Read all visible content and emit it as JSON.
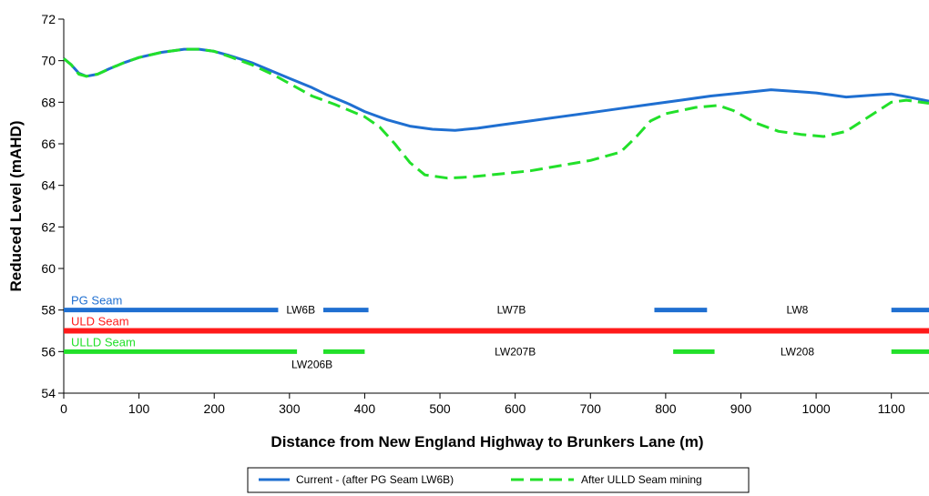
{
  "chart_data": {
    "type": "line",
    "title": "",
    "xlabel": "Distance from New England Highway to Brunkers Lane (m)",
    "ylabel": "Reduced Level (mAHD)",
    "xlim": [
      0,
      1150
    ],
    "ylim": [
      54,
      72
    ],
    "x_ticks": [
      0,
      100,
      200,
      300,
      400,
      500,
      600,
      700,
      800,
      900,
      1000,
      1100
    ],
    "y_ticks": [
      54,
      56,
      58,
      60,
      62,
      64,
      66,
      68,
      70,
      72
    ],
    "grid": false,
    "legend_position": "bottom",
    "series": [
      {
        "name": "Current - (after PG Seam LW6B)",
        "color": "#1f6fd1",
        "style": "solid",
        "points": [
          [
            0,
            70.1
          ],
          [
            10,
            69.8
          ],
          [
            20,
            69.4
          ],
          [
            30,
            69.25
          ],
          [
            45,
            69.35
          ],
          [
            60,
            69.6
          ],
          [
            80,
            69.9
          ],
          [
            100,
            70.15
          ],
          [
            130,
            70.4
          ],
          [
            160,
            70.55
          ],
          [
            180,
            70.55
          ],
          [
            200,
            70.45
          ],
          [
            220,
            70.25
          ],
          [
            250,
            69.9
          ],
          [
            280,
            69.45
          ],
          [
            300,
            69.15
          ],
          [
            330,
            68.7
          ],
          [
            350,
            68.35
          ],
          [
            380,
            67.9
          ],
          [
            400,
            67.55
          ],
          [
            430,
            67.15
          ],
          [
            460,
            66.85
          ],
          [
            490,
            66.7
          ],
          [
            520,
            66.65
          ],
          [
            550,
            66.75
          ],
          [
            580,
            66.9
          ],
          [
            620,
            67.1
          ],
          [
            660,
            67.3
          ],
          [
            700,
            67.5
          ],
          [
            740,
            67.7
          ],
          [
            780,
            67.9
          ],
          [
            820,
            68.1
          ],
          [
            860,
            68.3
          ],
          [
            900,
            68.45
          ],
          [
            940,
            68.6
          ],
          [
            960,
            68.55
          ],
          [
            1000,
            68.45
          ],
          [
            1040,
            68.25
          ],
          [
            1080,
            68.35
          ],
          [
            1100,
            68.4
          ],
          [
            1130,
            68.2
          ],
          [
            1150,
            68.05
          ]
        ]
      },
      {
        "name": "After ULLD Seam mining",
        "color": "#22e02a",
        "style": "dashed",
        "points": [
          [
            0,
            70.1
          ],
          [
            10,
            69.8
          ],
          [
            20,
            69.35
          ],
          [
            30,
            69.25
          ],
          [
            45,
            69.35
          ],
          [
            60,
            69.6
          ],
          [
            80,
            69.9
          ],
          [
            100,
            70.15
          ],
          [
            130,
            70.4
          ],
          [
            160,
            70.55
          ],
          [
            180,
            70.55
          ],
          [
            200,
            70.45
          ],
          [
            220,
            70.2
          ],
          [
            250,
            69.8
          ],
          [
            280,
            69.3
          ],
          [
            300,
            68.9
          ],
          [
            330,
            68.3
          ],
          [
            360,
            67.9
          ],
          [
            400,
            67.3
          ],
          [
            420,
            66.8
          ],
          [
            440,
            66.0
          ],
          [
            460,
            65.1
          ],
          [
            480,
            64.5
          ],
          [
            510,
            64.35
          ],
          [
            540,
            64.4
          ],
          [
            580,
            64.55
          ],
          [
            620,
            64.7
          ],
          [
            660,
            64.95
          ],
          [
            700,
            65.2
          ],
          [
            740,
            65.6
          ],
          [
            760,
            66.3
          ],
          [
            780,
            67.1
          ],
          [
            800,
            67.45
          ],
          [
            840,
            67.75
          ],
          [
            870,
            67.85
          ],
          [
            890,
            67.6
          ],
          [
            920,
            67.0
          ],
          [
            950,
            66.6
          ],
          [
            980,
            66.45
          ],
          [
            1010,
            66.35
          ],
          [
            1040,
            66.6
          ],
          [
            1070,
            67.3
          ],
          [
            1100,
            68.0
          ],
          [
            1120,
            68.1
          ],
          [
            1150,
            67.95
          ]
        ]
      }
    ],
    "seams": [
      {
        "label": "PG Seam",
        "color": "#1f6fd1",
        "level": 58,
        "segments": [
          [
            0,
            285
          ],
          [
            345,
            405
          ],
          [
            785,
            855
          ],
          [
            1100,
            1150
          ]
        ],
        "panels": [
          {
            "label": "LW6B",
            "x": 315
          },
          {
            "label": "LW7B",
            "x": 595
          },
          {
            "label": "LW8",
            "x": 975
          }
        ]
      },
      {
        "label": "ULD Seam",
        "color": "#ff1a1a",
        "level": 57,
        "segments": [
          [
            0,
            1150
          ]
        ],
        "panels": []
      },
      {
        "label": "ULLD Seam",
        "color": "#22e02a",
        "level": 56,
        "segments": [
          [
            0,
            310
          ],
          [
            345,
            400
          ],
          [
            810,
            865
          ],
          [
            1100,
            1150
          ]
        ],
        "panels": [
          {
            "label": "LW206B",
            "x": 330,
            "below": true
          },
          {
            "label": "LW207B",
            "x": 600
          },
          {
            "label": "LW208",
            "x": 975
          }
        ]
      }
    ]
  }
}
